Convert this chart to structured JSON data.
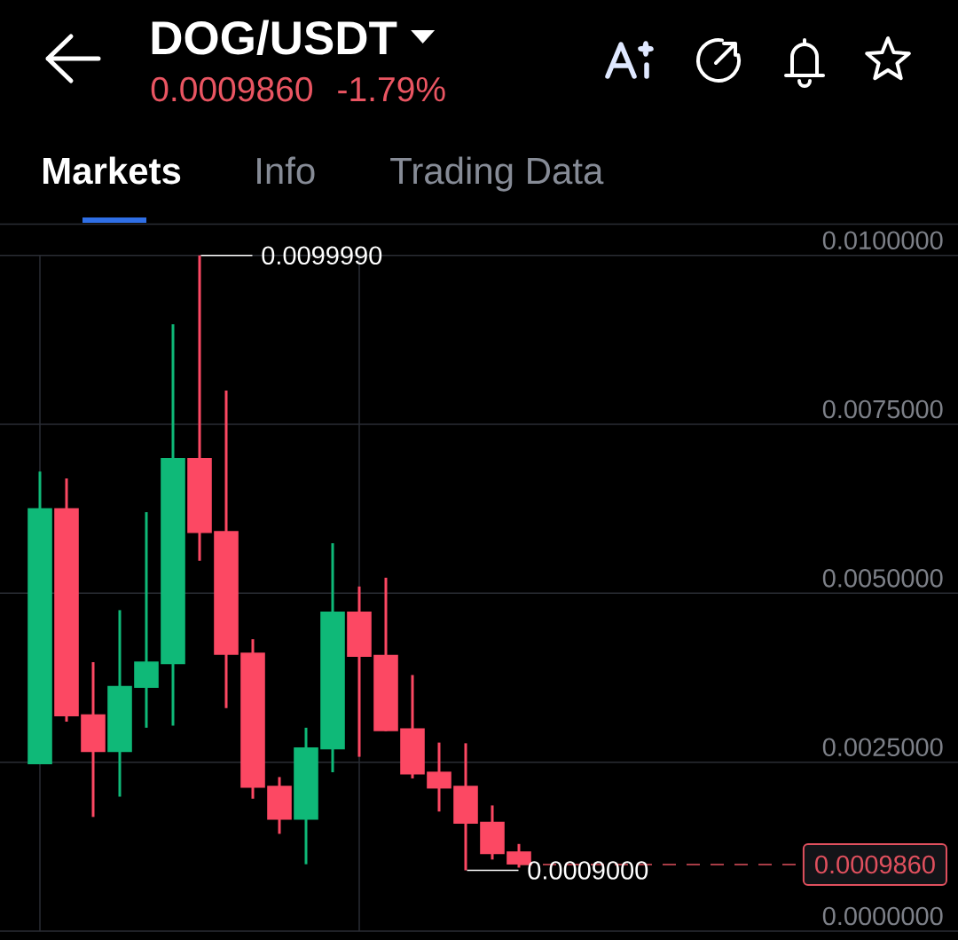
{
  "chart_data": {
    "type": "candlestick",
    "title": "DOG/USDT",
    "subtitle": "0.0009860 -1.79%",
    "categories": [
      null,
      null,
      null,
      null,
      null,
      null,
      null,
      null,
      null,
      null,
      null,
      null,
      null,
      null,
      null,
      null,
      null,
      null,
      null,
      null,
      null,
      null,
      null,
      null,
      null,
      null,
      null,
      null,
      null,
      null,
      null,
      null,
      null,
      null,
      null,
      null
    ],
    "ohlc": [
      null,
      [
        0.00247,
        0.0068,
        0.00247,
        0.00626
      ],
      [
        0.00626,
        0.0067,
        0.0031,
        0.00318
      ],
      [
        0.00321,
        0.00398,
        0.00169,
        0.00265
      ],
      [
        0.00265,
        0.00475,
        0.00199,
        0.00363
      ],
      [
        0.0036,
        0.0062,
        0.00301,
        0.00399
      ],
      [
        0.00395,
        0.00898,
        0.00304,
        0.007
      ],
      [
        0.007,
        0.009999,
        0.00548,
        0.00589
      ],
      [
        0.00592,
        0.008,
        0.0033,
        0.00409
      ],
      [
        0.00412,
        0.00432,
        0.00196,
        0.00212
      ],
      [
        0.00215,
        0.00228,
        0.00144,
        0.00165
      ],
      [
        0.00165,
        0.00301,
        0.00099,
        0.00272
      ],
      [
        0.00269,
        0.00574,
        0.00235,
        0.00473
      ],
      [
        0.00473,
        0.0051,
        0.00258,
        0.00406
      ],
      [
        0.00409,
        0.00523,
        0.00296,
        0.00296
      ],
      [
        0.003,
        0.00379,
        0.00226,
        0.00232
      ],
      [
        0.00236,
        0.00279,
        0.00177,
        0.00211
      ],
      [
        0.00215,
        0.00278,
        0.0009,
        0.00159
      ],
      [
        0.00162,
        0.00186,
        0.00106,
        0.00114
      ],
      [
        0.00118,
        0.00129,
        0.00094,
        0.000986
      ],
      null,
      null,
      null,
      null,
      null,
      null,
      null,
      null,
      null,
      null,
      null,
      null,
      null,
      null,
      null,
      null
    ],
    "colors": [
      null,
      "#0fb978",
      "#fc4863",
      "#fc4863",
      "#0fb978",
      "#0fb978",
      "#0fb978",
      "#fc4863",
      "#fc4863",
      "#fc4863",
      "#fc4863",
      "#0fb978",
      "#0fb978",
      "#fc4863",
      "#fc4863",
      "#fc4863",
      "#fc4863",
      "#fc4863",
      "#fc4863",
      "#fc4863",
      null,
      null,
      null,
      null,
      null,
      null,
      null,
      null,
      null,
      null,
      null,
      null,
      null,
      null,
      null,
      null
    ],
    "ylim": [
      0,
      0.01
    ],
    "yticks": [
      {
        "value": 0,
        "label": "0.0000000"
      },
      {
        "value": 0.0025,
        "label": "0.0025000"
      },
      {
        "value": 0.005,
        "label": "0.0050000"
      },
      {
        "value": 0.0075,
        "label": "0.0075000"
      },
      {
        "value": 0.01,
        "label": "0.0100000"
      }
    ],
    "grid": true,
    "tick_labels": "y",
    "ref_lines": [
      {
        "axis": "y",
        "value": 0.000986,
        "label": "0.0009860",
        "color": "#e0505e",
        "line_style": "dashed"
      }
    ],
    "annotations": [
      "0.0099990",
      "0.0009000",
      "Markets",
      "Info",
      "Trading Data"
    ]
  }
}
